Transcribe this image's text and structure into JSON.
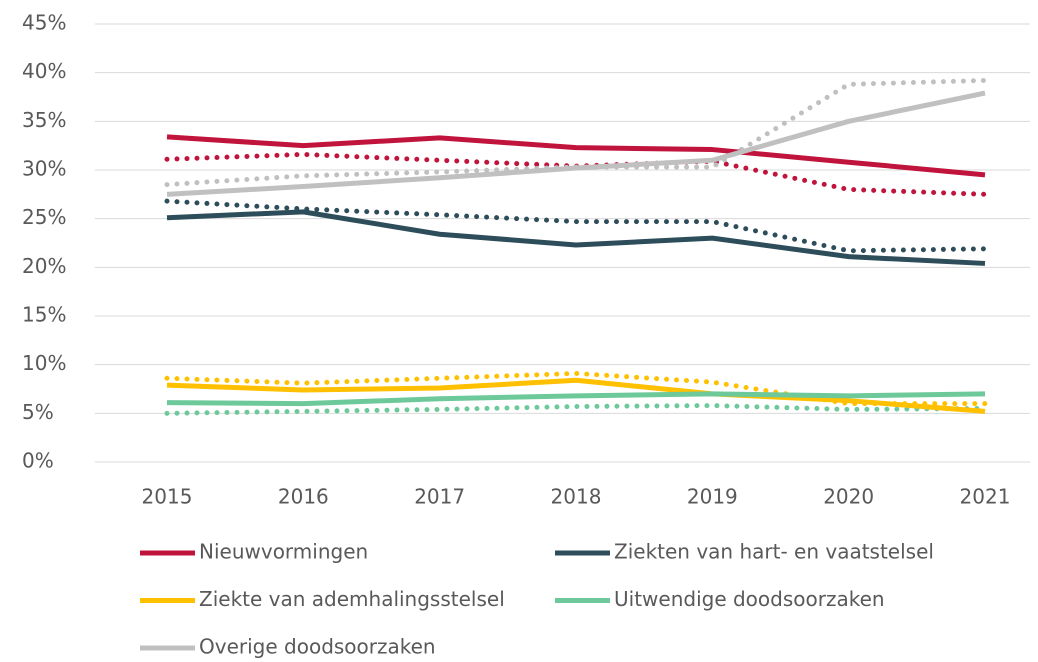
{
  "chart_data": {
    "type": "line",
    "categories": [
      "2015",
      "2016",
      "2017",
      "2018",
      "2019",
      "2020",
      "2021"
    ],
    "ylim": [
      0,
      45
    ],
    "yticks": [
      {
        "value": 0,
        "label": "0%"
      },
      {
        "value": 5,
        "label": "5%"
      },
      {
        "value": 10,
        "label": "10%"
      },
      {
        "value": 15,
        "label": "15%"
      },
      {
        "value": 20,
        "label": "20%"
      },
      {
        "value": 25,
        "label": "25%"
      },
      {
        "value": 30,
        "label": "30%"
      },
      {
        "value": 35,
        "label": "35%"
      },
      {
        "value": 40,
        "label": "40%"
      },
      {
        "value": 45,
        "label": "45%"
      }
    ],
    "grid": true,
    "legend": "bottom",
    "series": [
      {
        "name": "Nieuwvormingen",
        "color": "#c0143c",
        "values": [
          33.4,
          32.5,
          33.3,
          32.3,
          32.1,
          30.8,
          29.5
        ]
      },
      {
        "name": "Ziekten van hart- en vaatstelsel",
        "color": "#2d4d5a",
        "values": [
          25.1,
          25.7,
          23.4,
          22.3,
          23.0,
          21.1,
          20.4
        ]
      },
      {
        "name": "Ziekte van ademhalingsstelsel",
        "color": "#ffc000",
        "values": [
          7.9,
          7.4,
          7.6,
          8.4,
          7.0,
          6.3,
          5.2
        ]
      },
      {
        "name": "Uitwendige doodsoorzaken",
        "color": "#6dc99a",
        "values": [
          6.1,
          6.0,
          6.5,
          6.8,
          7.0,
          6.8,
          7.0
        ]
      },
      {
        "name": "Overige doodsoorzaken",
        "color": "#c0c0c0",
        "values": [
          27.5,
          28.3,
          29.2,
          30.2,
          31.0,
          35.0,
          37.9
        ]
      },
      {
        "color": "#c0143c",
        "dotted": true,
        "values": [
          31.1,
          31.6,
          31.0,
          30.4,
          30.9,
          28.0,
          27.5
        ]
      },
      {
        "color": "#2d4d5a",
        "dotted": true,
        "values": [
          26.8,
          26.0,
          25.4,
          24.7,
          24.7,
          21.7,
          21.9
        ]
      },
      {
        "color": "#ffc000",
        "dotted": true,
        "values": [
          8.6,
          8.1,
          8.6,
          9.1,
          8.2,
          6.0,
          6.0
        ]
      },
      {
        "color": "#6dc99a",
        "dotted": true,
        "values": [
          5.0,
          5.2,
          5.4,
          5.7,
          5.8,
          5.4,
          5.5
        ]
      },
      {
        "color": "#c0c0c0",
        "dotted": true,
        "values": [
          28.5,
          29.4,
          29.8,
          30.3,
          30.3,
          38.8,
          39.2
        ]
      }
    ]
  }
}
